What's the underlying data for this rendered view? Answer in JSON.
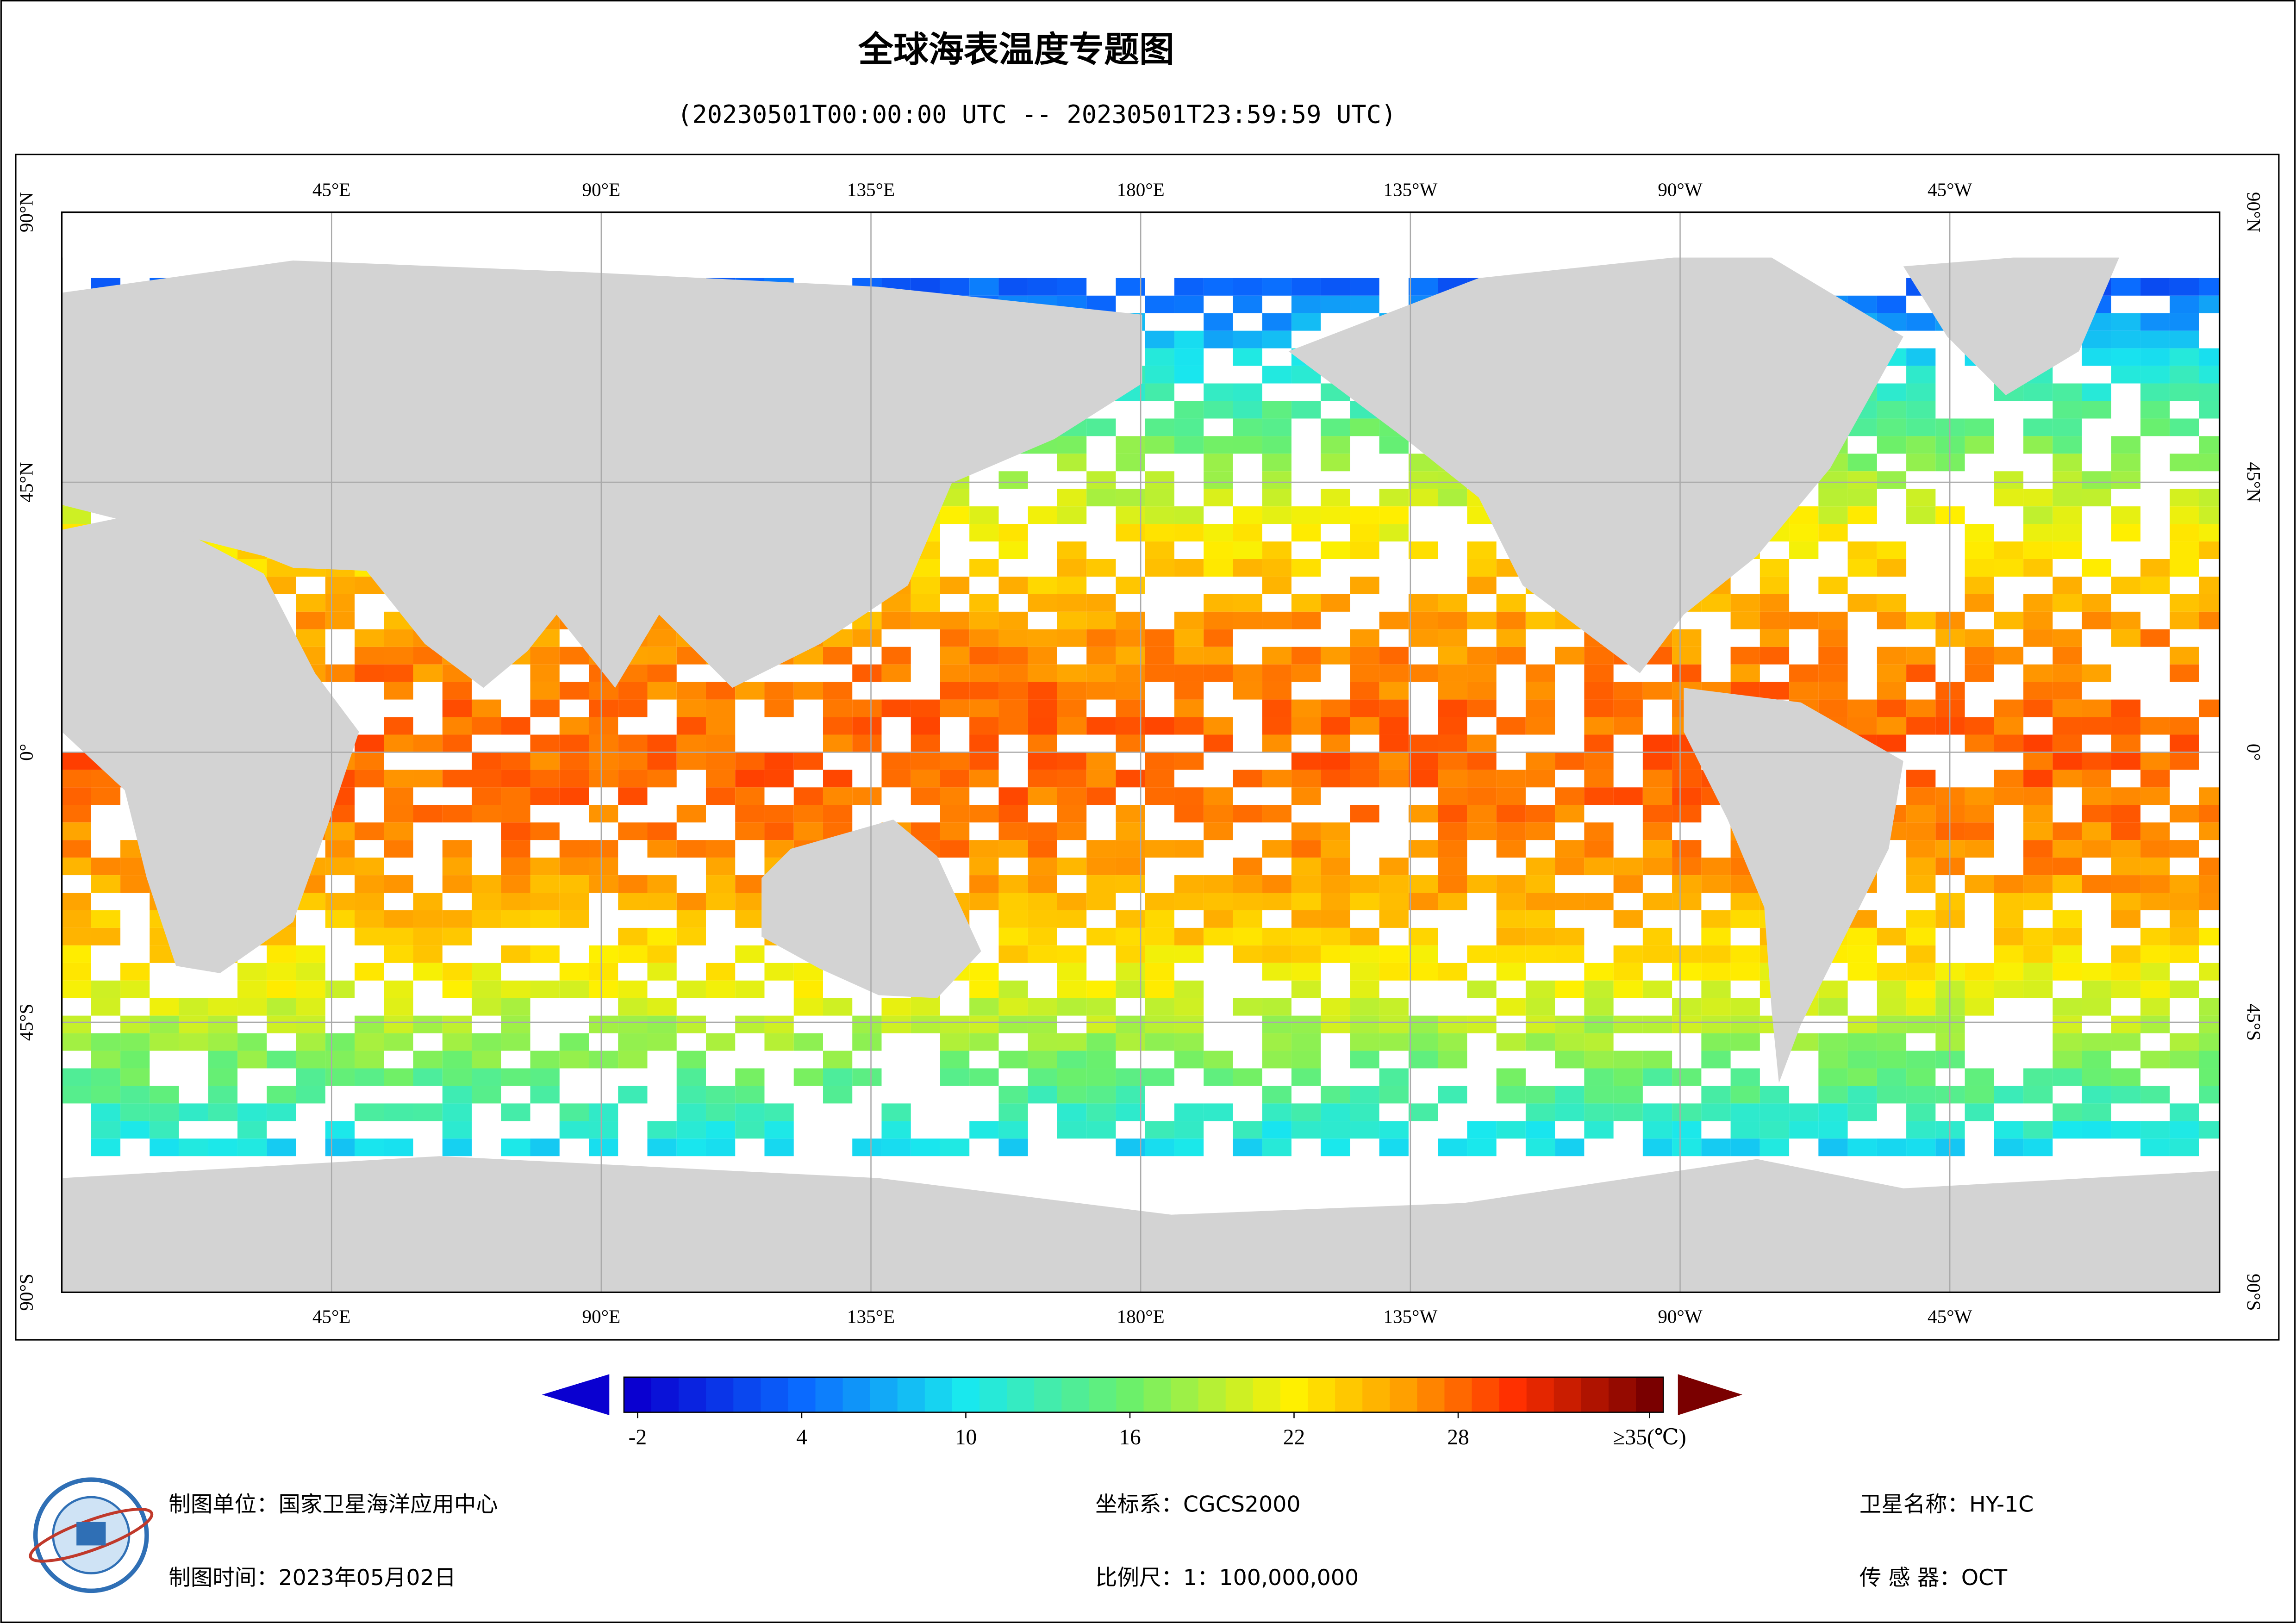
{
  "title": "全球海表温度专题图",
  "subtitle": "(20230501T00:00:00 UTC -- 20230501T23:59:59 UTC)",
  "map": {
    "lon_labels": [
      "45°E",
      "90°E",
      "135°E",
      "180°E",
      "135°W",
      "90°W",
      "45°W"
    ],
    "lat_labels": [
      "90°N",
      "45°N",
      "0°",
      "45°S",
      "90°S"
    ]
  },
  "colorbar": {
    "lim": [
      -2.5,
      35.5
    ],
    "ticks": [
      -2,
      4,
      10,
      16,
      22,
      28,
      {
        "value": 35,
        "label": "≥35(℃)"
      }
    ]
  },
  "footer": {
    "unit": "制图单位：国家卫星海洋应用中心",
    "date": "制图时间：2023年05月02日",
    "crs": "坐标系：CGCS2000",
    "scale": "比例尺：1：100,000,000",
    "satellite": "卫星名称：HY-1C",
    "sensor": "传 感 器：OCT"
  }
}
